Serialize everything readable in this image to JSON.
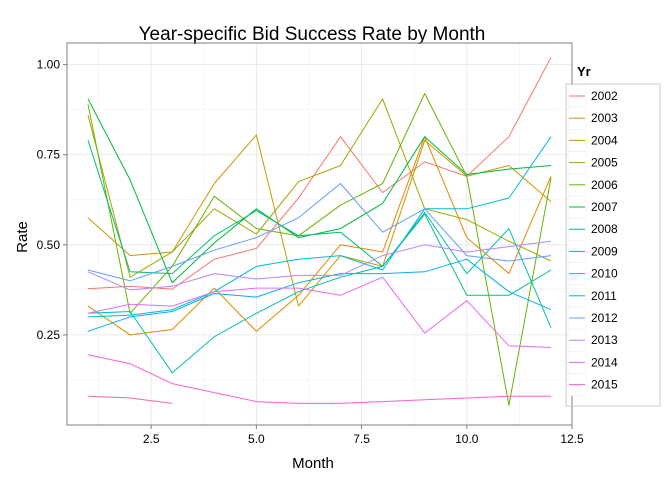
{
  "chart_data": {
    "type": "line",
    "title": "Year-specific Bid Success Rate by Month",
    "xlabel": "Month",
    "ylabel": "Rate",
    "xlim": [
      0.5,
      12.5
    ],
    "ylim": [
      0.0,
      1.06
    ],
    "xticks": [
      2.5,
      5.0,
      7.5,
      10.0,
      12.5
    ],
    "xtick_labels": [
      "2.5",
      "5.0",
      "7.5",
      "10.0",
      "12.5"
    ],
    "yticks": [
      0.25,
      0.5,
      0.75,
      1.0
    ],
    "ytick_labels": [
      "0.25",
      "0.50",
      "0.75",
      "1.00"
    ],
    "grid": true,
    "legend": {
      "title": "Yr",
      "position": "right"
    },
    "series": [
      {
        "name": "2002",
        "color": "#F8766D",
        "x": [
          1,
          2,
          3,
          4,
          5,
          6,
          7,
          8,
          9,
          10,
          11,
          12
        ],
        "y": [
          0.378,
          0.385,
          0.377,
          0.46,
          0.49,
          0.63,
          0.8,
          0.645,
          0.73,
          0.69,
          0.8,
          1.02
        ]
      },
      {
        "name": "2003",
        "color": "#E58700",
        "x": [
          1,
          2,
          3,
          4,
          5,
          6,
          7,
          8,
          9,
          10,
          11,
          12
        ],
        "y": [
          0.33,
          0.25,
          0.265,
          0.38,
          0.26,
          0.36,
          0.5,
          0.48,
          0.8,
          0.52,
          0.42,
          0.69
        ]
      },
      {
        "name": "2004",
        "color": "#C99800",
        "x": [
          1,
          2,
          3,
          4,
          5,
          6,
          7,
          8,
          9,
          10,
          11,
          12
        ],
        "y": [
          0.575,
          0.47,
          0.48,
          0.67,
          0.805,
          0.33,
          0.47,
          0.44,
          0.79,
          0.69,
          0.72,
          0.62
        ]
      },
      {
        "name": "2005",
        "color": "#A3A500",
        "x": [
          1,
          2,
          3,
          4,
          5,
          6,
          7,
          8,
          9,
          10,
          11,
          12
        ],
        "y": [
          0.86,
          0.41,
          0.48,
          0.6,
          0.53,
          0.675,
          0.72,
          0.905,
          0.6,
          0.57,
          0.51,
          0.455
        ]
      },
      {
        "name": "2006",
        "color": "#6BB100",
        "x": [
          1,
          2,
          3,
          4,
          5,
          6,
          7,
          8,
          9,
          10,
          11,
          12
        ],
        "y": [
          0.89,
          0.31,
          0.44,
          0.635,
          0.545,
          0.525,
          0.61,
          0.67,
          0.92,
          0.69,
          0.055,
          0.685
        ]
      },
      {
        "name": "2007",
        "color": "#00BA38",
        "x": [
          1,
          2,
          3,
          4,
          5,
          6,
          7,
          8,
          9,
          10,
          11,
          12
        ],
        "y": [
          0.905,
          0.68,
          0.395,
          0.505,
          0.6,
          0.52,
          0.545,
          0.615,
          0.8,
          0.695,
          0.71,
          0.72
        ]
      },
      {
        "name": "2008",
        "color": "#00BF7D",
        "x": [
          1,
          2,
          3,
          4,
          5,
          6,
          7,
          8,
          9,
          10,
          11,
          12
        ],
        "y": [
          0.79,
          0.425,
          0.42,
          0.525,
          0.595,
          0.525,
          0.535,
          0.44,
          0.585,
          0.36,
          0.36,
          0.43
        ]
      },
      {
        "name": "2009",
        "color": "#00C0AF",
        "x": [
          1,
          2,
          3,
          4,
          5,
          6,
          7,
          8,
          9,
          10,
          11,
          12
        ],
        "y": [
          0.31,
          0.315,
          0.145,
          0.245,
          0.31,
          0.37,
          0.41,
          0.44,
          0.59,
          0.42,
          0.545,
          0.27
        ]
      },
      {
        "name": "2010",
        "color": "#00BCD8",
        "x": [
          1,
          2,
          3,
          4,
          5,
          6,
          7,
          8,
          9,
          10,
          11,
          12
        ],
        "y": [
          0.3,
          0.305,
          0.32,
          0.37,
          0.44,
          0.46,
          0.47,
          0.43,
          0.6,
          0.6,
          0.63,
          0.8
        ]
      },
      {
        "name": "2011",
        "color": "#00B0F6",
        "x": [
          1,
          2,
          3,
          4,
          5,
          6,
          7,
          8,
          9,
          10,
          11,
          12
        ],
        "y": [
          0.26,
          0.3,
          0.315,
          0.365,
          0.355,
          0.395,
          0.42,
          0.42,
          0.425,
          0.46,
          0.37,
          0.32
        ]
      },
      {
        "name": "2012",
        "color": "#619CFF",
        "x": [
          1,
          2,
          3,
          4,
          5,
          6,
          7,
          8,
          9,
          10,
          11,
          12
        ],
        "y": [
          0.43,
          0.4,
          0.44,
          0.485,
          0.52,
          0.575,
          0.67,
          0.535,
          0.6,
          0.47,
          0.455,
          0.47
        ]
      },
      {
        "name": "2013",
        "color": "#B983FF",
        "x": [
          1,
          2,
          3,
          4,
          5,
          6,
          7,
          8,
          9,
          10,
          11,
          12
        ],
        "y": [
          0.425,
          0.375,
          0.385,
          0.42,
          0.405,
          0.415,
          0.415,
          0.47,
          0.5,
          0.48,
          0.495,
          0.51
        ]
      },
      {
        "name": "2014",
        "color": "#E76BF3",
        "x": [
          1,
          2,
          3,
          4,
          5,
          6,
          7,
          8,
          9,
          10,
          11,
          12
        ],
        "y": [
          0.31,
          0.335,
          0.33,
          0.37,
          0.38,
          0.38,
          0.36,
          0.41,
          0.255,
          0.345,
          0.22,
          0.215
        ]
      },
      {
        "name": "2015",
        "color": "#FD61D1",
        "x": [
          1,
          2,
          3,
          4,
          5,
          6,
          7,
          8,
          9,
          10,
          11,
          12
        ],
        "y": [
          0.195,
          0.17,
          0.115,
          0.09,
          0.065,
          0.06,
          0.06,
          0.065,
          0.07,
          0.075,
          0.08,
          0.08
        ]
      },
      {
        "name": "",
        "color": "#FF67A4",
        "x": [
          1,
          2,
          3
        ],
        "y": [
          0.08,
          0.075,
          0.06
        ]
      }
    ]
  }
}
